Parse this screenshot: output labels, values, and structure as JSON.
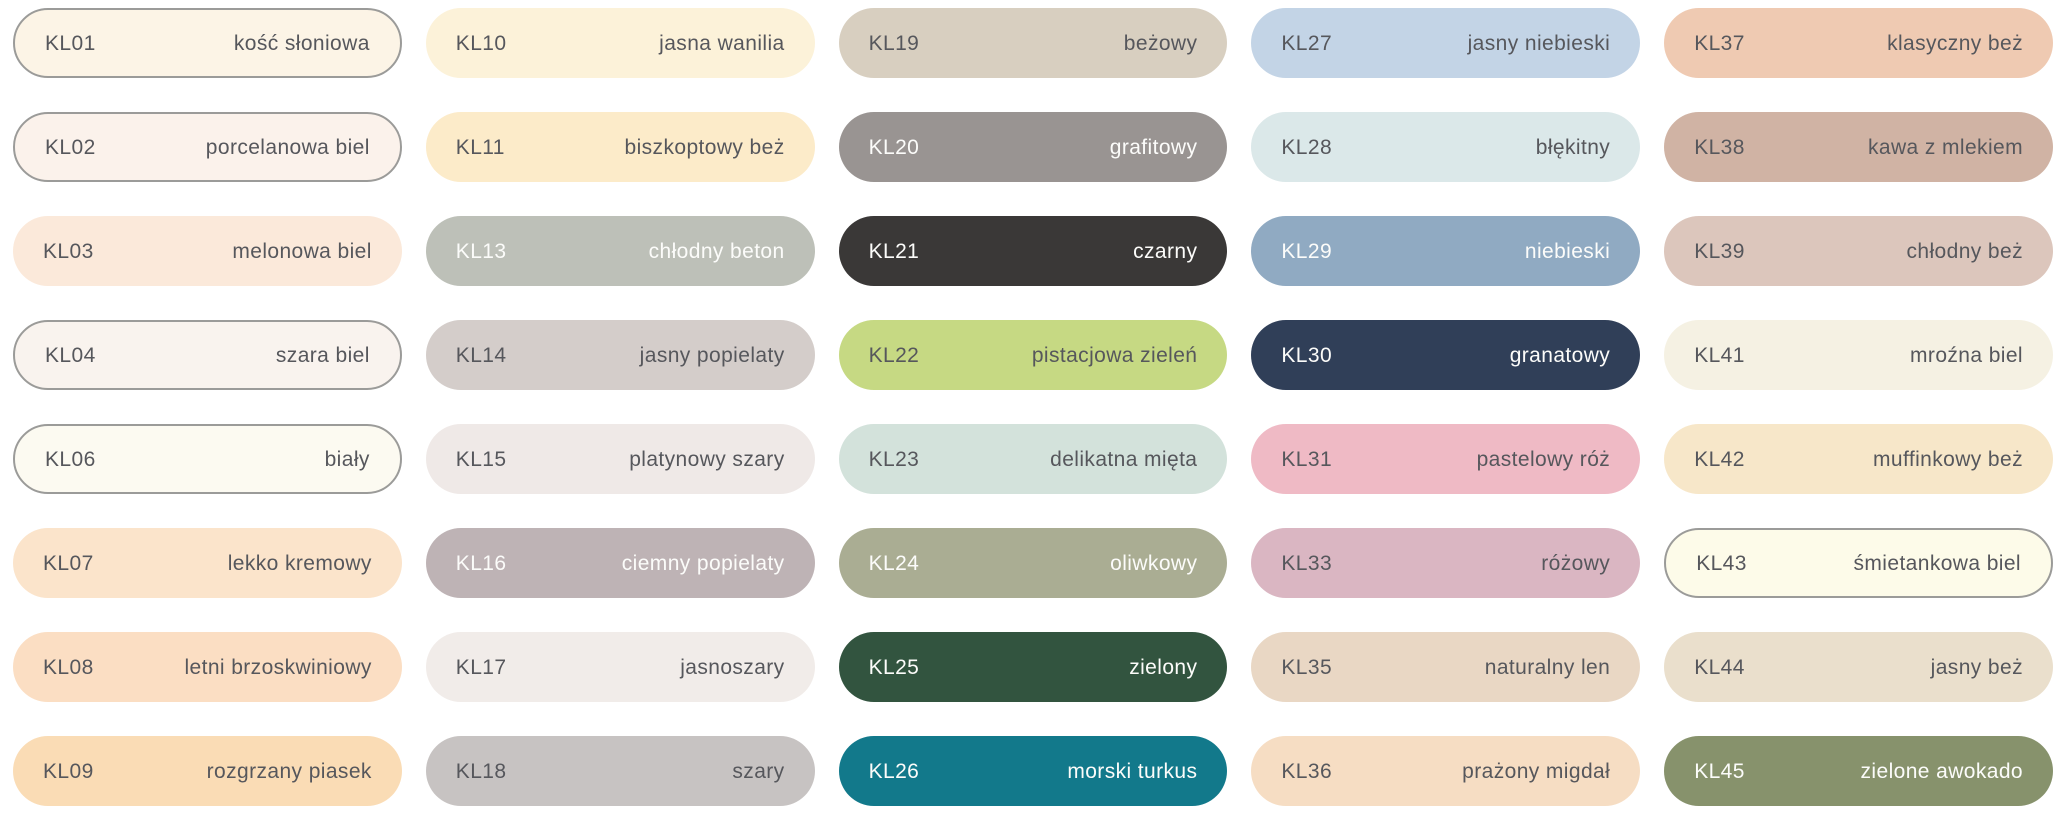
{
  "palette": {
    "columns": 5,
    "rows": 8,
    "background": "#FFFFFF",
    "border_color": "#9B9B99",
    "text_color_dark": "#56575C",
    "text_color_light": "#FCFCFA",
    "swatches": [
      {
        "code": "KL01",
        "name": "kość słoniowa",
        "bg": "#FCF4E6",
        "text": "dark",
        "border": true
      },
      {
        "code": "KL02",
        "name": "porcelanowa biel",
        "bg": "#FBF2EB",
        "text": "dark",
        "border": true
      },
      {
        "code": "KL03",
        "name": "melonowa biel",
        "bg": "#FBE9DA",
        "text": "dark",
        "border": false
      },
      {
        "code": "KL04",
        "name": "szara biel",
        "bg": "#F9F3EE",
        "text": "dark",
        "border": true
      },
      {
        "code": "KL06",
        "name": "biały",
        "bg": "#FCFAF1",
        "text": "dark",
        "border": true
      },
      {
        "code": "KL07",
        "name": "lekko kremowy",
        "bg": "#FBE4CB",
        "text": "dark",
        "border": false
      },
      {
        "code": "KL08",
        "name": "letni brzoskwiniowy",
        "bg": "#FBDEC3",
        "text": "dark",
        "border": false
      },
      {
        "code": "KL09",
        "name": "rozgrzany piasek",
        "bg": "#FADCB5",
        "text": "dark",
        "border": false
      },
      {
        "code": "KL10",
        "name": "jasna wanilia",
        "bg": "#FCF2D9",
        "text": "dark",
        "border": false
      },
      {
        "code": "KL11",
        "name": "biszkoptowy beż",
        "bg": "#FCEBC9",
        "text": "dark",
        "border": false
      },
      {
        "code": "KL13",
        "name": "chłodny beton",
        "bg": "#BDC0B8",
        "text": "light",
        "border": false
      },
      {
        "code": "KL14",
        "name": "jasny popielaty",
        "bg": "#D4CDCA",
        "text": "dark",
        "border": false
      },
      {
        "code": "KL15",
        "name": "platynowy szary",
        "bg": "#EFE9E7",
        "text": "dark",
        "border": false
      },
      {
        "code": "KL16",
        "name": "ciemny popielaty",
        "bg": "#BEB3B5",
        "text": "light",
        "border": false
      },
      {
        "code": "KL17",
        "name": "jasnoszary",
        "bg": "#F1ECE9",
        "text": "dark",
        "border": false
      },
      {
        "code": "KL18",
        "name": "szary",
        "bg": "#C7C3C2",
        "text": "dark",
        "border": false
      },
      {
        "code": "KL19",
        "name": "beżowy",
        "bg": "#D8CFC0",
        "text": "dark",
        "border": false
      },
      {
        "code": "KL20",
        "name": "grafitowy",
        "bg": "#999492",
        "text": "light",
        "border": false
      },
      {
        "code": "KL21",
        "name": "czarny",
        "bg": "#3A3837",
        "text": "light",
        "border": false
      },
      {
        "code": "KL22",
        "name": "pistacjowa zieleń",
        "bg": "#C6D983",
        "text": "dark",
        "border": false
      },
      {
        "code": "KL23",
        "name": "delikatna mięta",
        "bg": "#D3E2DB",
        "text": "dark",
        "border": false
      },
      {
        "code": "KL24",
        "name": "oliwkowy",
        "bg": "#AAAD93",
        "text": "light",
        "border": false
      },
      {
        "code": "KL25",
        "name": "zielony",
        "bg": "#32543F",
        "text": "light",
        "border": false
      },
      {
        "code": "KL26",
        "name": "morski turkus",
        "bg": "#12798B",
        "text": "light",
        "border": false
      },
      {
        "code": "KL27",
        "name": "jasny niebieski",
        "bg": "#C3D4E6",
        "text": "dark",
        "border": false
      },
      {
        "code": "KL28",
        "name": "błękitny",
        "bg": "#DBE8E9",
        "text": "dark",
        "border": false
      },
      {
        "code": "KL29",
        "name": "niebieski",
        "bg": "#90AAC2",
        "text": "light",
        "border": false
      },
      {
        "code": "KL30",
        "name": "granatowy",
        "bg": "#303F58",
        "text": "light",
        "border": false
      },
      {
        "code": "KL31",
        "name": "pastelowy róż",
        "bg": "#EFBAC5",
        "text": "dark",
        "border": false
      },
      {
        "code": "KL33",
        "name": "różowy",
        "bg": "#DAB6C2",
        "text": "dark",
        "border": false
      },
      {
        "code": "KL35",
        "name": "naturalny len",
        "bg": "#E9D7C4",
        "text": "dark",
        "border": false
      },
      {
        "code": "KL36",
        "name": "prażony migdał",
        "bg": "#F6DDC3",
        "text": "dark",
        "border": false
      },
      {
        "code": "KL37",
        "name": "klasyczny beż",
        "bg": "#EFCAB2",
        "text": "dark",
        "border": false
      },
      {
        "code": "KL38",
        "name": "kawa z mlekiem",
        "bg": "#D0B3A4",
        "text": "dark",
        "border": false
      },
      {
        "code": "KL39",
        "name": "chłodny beż",
        "bg": "#DCC6BC",
        "text": "dark",
        "border": false
      },
      {
        "code": "KL41",
        "name": "mroźna biel",
        "bg": "#F5F1E3",
        "text": "dark",
        "border": false
      },
      {
        "code": "KL42",
        "name": "muffinkowy beż",
        "bg": "#F7E7C9",
        "text": "dark",
        "border": false
      },
      {
        "code": "KL43",
        "name": "śmietankowa biel",
        "bg": "#FDFBE9",
        "text": "dark",
        "border": true
      },
      {
        "code": "KL44",
        "name": "jasny beż",
        "bg": "#EADFCC",
        "text": "dark",
        "border": false
      },
      {
        "code": "KL45",
        "name": "zielone awokado",
        "bg": "#87926C",
        "text": "light",
        "border": false
      }
    ]
  }
}
